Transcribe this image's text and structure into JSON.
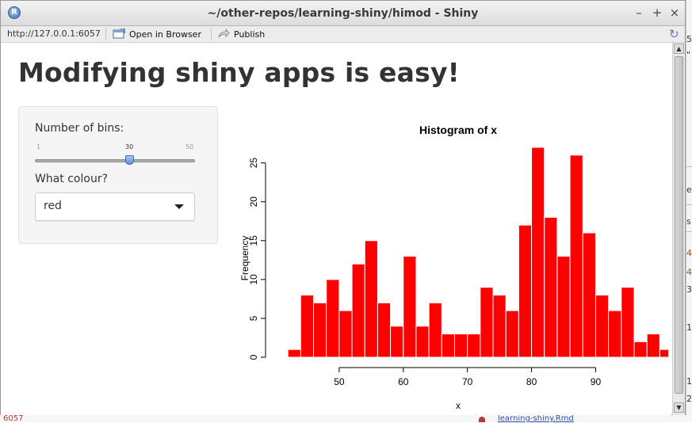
{
  "window": {
    "title": "~/other-repos/learning-shiny/himod - Shiny",
    "minimize_glyph": "–",
    "maximize_glyph": "+",
    "close_glyph": "×",
    "app_icon_letter": "R"
  },
  "toolbar": {
    "url": "http://127.0.0.1:6057",
    "open_browser_label": "Open in Browser",
    "publish_label": "Publish",
    "refresh_icon": "refresh-icon"
  },
  "app": {
    "heading": "Modifying shiny apps is easy!",
    "bins": {
      "label": "Number of bins:",
      "min": "1",
      "max": "50",
      "value": "30",
      "fraction": 0.592
    },
    "colour": {
      "label": "What colour?",
      "selected": "red"
    }
  },
  "chart_data": {
    "type": "bar",
    "title": "Histogram of x",
    "xlabel": "x",
    "ylabel": "Frequency",
    "bar_color": "#ff0000",
    "bin_width": 2,
    "bin_start": 42,
    "values": [
      1,
      8,
      7,
      10,
      6,
      12,
      15,
      7,
      4,
      13,
      4,
      7,
      3,
      3,
      3,
      9,
      8,
      6,
      17,
      27,
      18,
      13,
      26,
      16,
      8,
      6,
      9,
      2,
      3,
      1
    ],
    "xlim": [
      40,
      96
    ],
    "ylim": [
      0,
      27
    ],
    "x_ticks": [
      50,
      60,
      70,
      80,
      90
    ],
    "y_ticks": [
      0,
      5,
      10,
      15,
      20,
      25
    ],
    "grid": false
  },
  "background": {
    "right_glyphs": [
      {
        "text": "5",
        "cls": ""
      },
      {
        "text": "\"",
        "cls": ""
      },
      {
        "text": "e",
        "cls": ""
      },
      {
        "text": "s",
        "cls": ""
      },
      {
        "text": "4",
        "cls": "brown"
      },
      {
        "text": "4",
        "cls": "brown"
      },
      {
        "text": "3",
        "cls": ""
      },
      {
        "text": "1",
        "cls": ""
      },
      {
        "text": "1",
        "cls": ""
      },
      {
        "text": "2",
        "cls": ""
      }
    ],
    "bottom_left_text": "6057",
    "bottom_link_text": "learning-shiny.Rmd"
  }
}
